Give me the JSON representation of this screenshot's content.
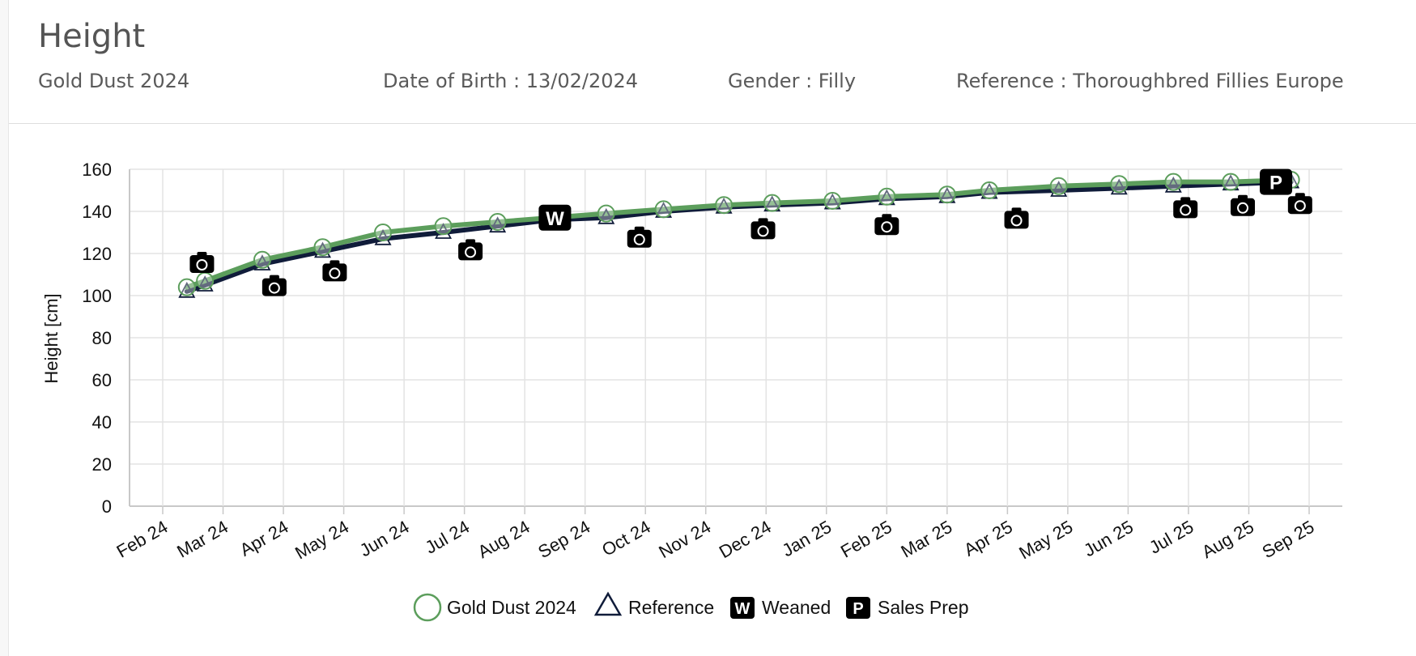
{
  "header": {
    "title": "Height",
    "horse_name": "Gold Dust 2024",
    "dob": "Date of Birth : 13/02/2024",
    "gender": "Gender : Filly",
    "reference": "Reference : Thoroughbred Fillies Europe"
  },
  "colors": {
    "horse_series": "#5c9e5c",
    "reference_series": "#101c3a",
    "grid": "#e3e3e3",
    "marker_bg": "#000000"
  },
  "legend": {
    "horse": "Gold Dust 2024",
    "reference": "Reference",
    "weaned_glyph": "W",
    "weaned": "Weaned",
    "sales_glyph": "P",
    "sales": "Sales Prep"
  },
  "chart_data": {
    "type": "line",
    "title": "",
    "xlabel": "",
    "ylabel": "Height [cm]",
    "ylim": [
      0,
      160
    ],
    "yticks": [
      0,
      20,
      40,
      60,
      80,
      100,
      120,
      140,
      160
    ],
    "xlim_months": [
      -0.55,
      19.55
    ],
    "x_tick_labels": [
      "Feb 24",
      "Mar 24",
      "Apr 24",
      "May 24",
      "Jun 24",
      "Jul 24",
      "Aug 24",
      "Sep 24",
      "Oct 24",
      "Nov 24",
      "Dec 24",
      "Jan 25",
      "Feb 25",
      "Mar 25",
      "Apr 25",
      "May 25",
      "Jun 25",
      "Jul 25",
      "Aug 25",
      "Sep 25"
    ],
    "x_axis_note": "x in months after Feb 24",
    "series": [
      {
        "name": "Gold Dust 2024",
        "marker": "circle",
        "x": [
          0.4,
          0.7,
          1.65,
          2.65,
          3.65,
          4.65,
          5.55,
          6.45,
          7.35,
          8.3,
          9.3,
          10.1,
          11.1,
          12.0,
          13.0,
          13.7,
          14.85,
          15.85,
          16.75,
          17.7,
          18.7
        ],
        "values": [
          104,
          107,
          117,
          123,
          130,
          133,
          135,
          137,
          139,
          141,
          143,
          144,
          145,
          147,
          148,
          150,
          152,
          153,
          154,
          154,
          155
        ]
      },
      {
        "name": "Reference",
        "marker": "triangle",
        "x": [
          0.4,
          0.7,
          1.65,
          2.65,
          3.65,
          4.65,
          5.55,
          6.45,
          7.35,
          8.3,
          9.3,
          10.1,
          11.1,
          12.0,
          13.0,
          13.7,
          14.85,
          15.85,
          16.75,
          17.7,
          18.7
        ],
        "values": [
          102,
          105,
          115,
          121,
          127,
          130,
          133,
          136,
          137,
          140,
          142,
          143,
          144,
          146,
          147,
          149,
          150,
          151,
          152,
          153,
          154
        ]
      }
    ],
    "photo_markers": [
      {
        "x": 0.65,
        "y": 115
      },
      {
        "x": 1.85,
        "y": 104
      },
      {
        "x": 2.85,
        "y": 111
      },
      {
        "x": 5.1,
        "y": 121
      },
      {
        "x": 7.9,
        "y": 127
      },
      {
        "x": 9.95,
        "y": 131
      },
      {
        "x": 12.0,
        "y": 133
      },
      {
        "x": 14.15,
        "y": 136
      },
      {
        "x": 16.95,
        "y": 141
      },
      {
        "x": 17.9,
        "y": 142
      },
      {
        "x": 18.85,
        "y": 143
      }
    ],
    "event_markers": [
      {
        "type": "Weaned",
        "glyph": "W",
        "x": 6.5,
        "y": 137
      },
      {
        "type": "Sales Prep",
        "glyph": "P",
        "x": 18.45,
        "y": 154
      }
    ]
  }
}
